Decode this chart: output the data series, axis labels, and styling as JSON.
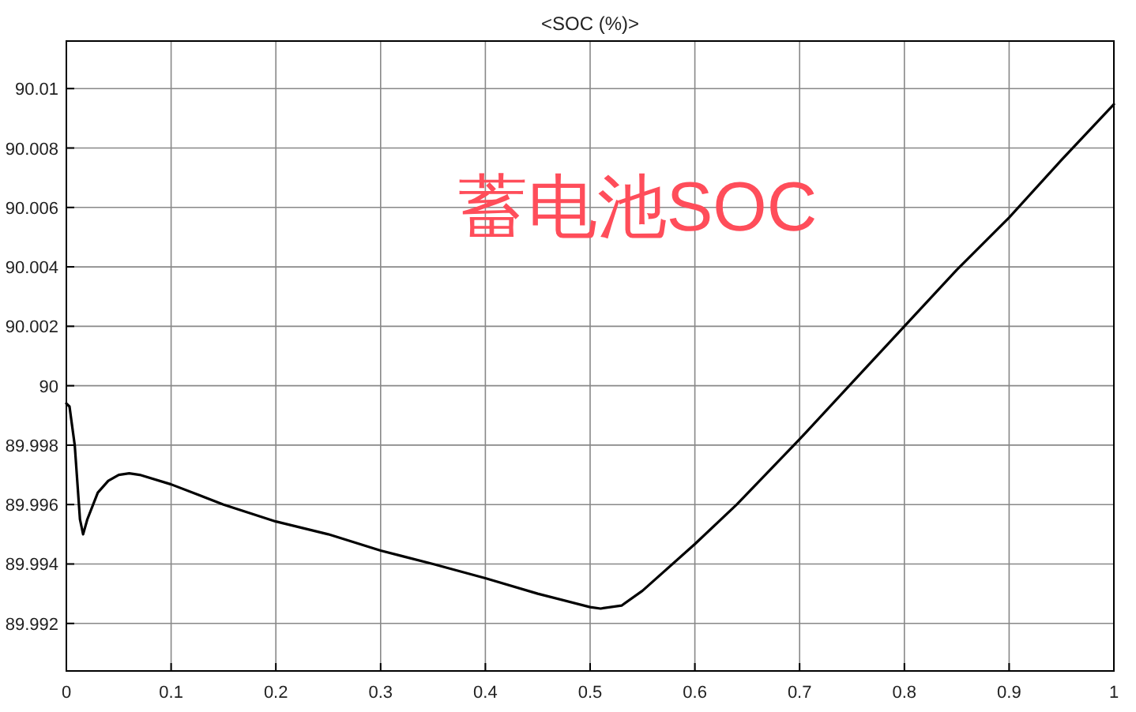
{
  "chart_data": {
    "type": "line",
    "title": "<SOC (%)>",
    "annotations": [
      "蓄电池SOC"
    ],
    "x": [
      0,
      0.003,
      0.008,
      0.013,
      0.016,
      0.02,
      0.03,
      0.04,
      0.05,
      0.06,
      0.07,
      0.1,
      0.15,
      0.2,
      0.25,
      0.3,
      0.35,
      0.4,
      0.45,
      0.5,
      0.51,
      0.53,
      0.55,
      0.6,
      0.64,
      0.7,
      0.75,
      0.8,
      0.85,
      0.9,
      0.95,
      1
    ],
    "series": [
      {
        "color": "#000000",
        "values": [
          89.9994,
          89.9993,
          89.998,
          89.9955,
          89.995,
          89.9955,
          89.9964,
          89.9968,
          89.997,
          89.99705,
          89.997,
          89.99668,
          89.996,
          89.99543,
          89.995,
          89.99445,
          89.994,
          89.99352,
          89.993,
          89.99255,
          89.9925,
          89.9926,
          89.9931,
          89.99467,
          89.996,
          89.9982,
          90.0001,
          90.002,
          90.0039,
          90.00566,
          90.0076,
          90.00947
        ]
      }
    ],
    "xlim": [
      0,
      1
    ],
    "xticks": [
      0,
      0.1,
      0.2,
      0.3,
      0.4,
      0.5,
      0.6,
      0.7,
      0.8,
      0.9,
      1
    ],
    "ylim": [
      89.9904,
      90.0116
    ],
    "yticks": [
      89.992,
      89.994,
      89.996,
      89.998,
      90,
      90.002,
      90.004,
      90.006,
      90.008,
      90.01
    ],
    "grid": true,
    "marker": "none",
    "line_style": "solid"
  }
}
